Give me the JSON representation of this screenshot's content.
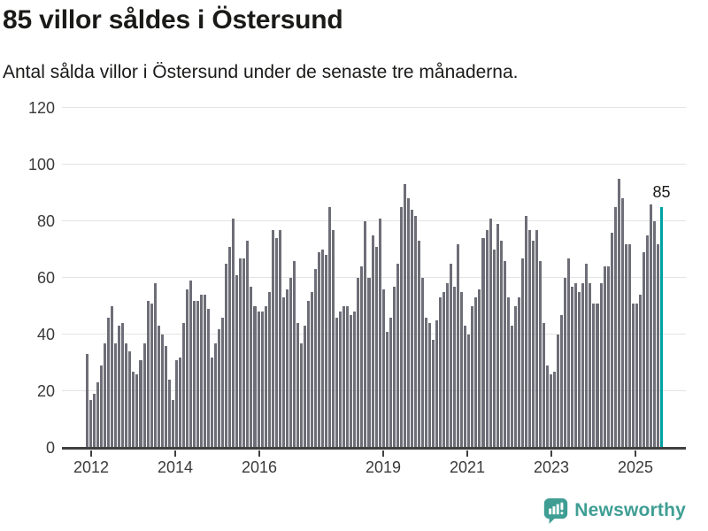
{
  "header": {
    "title": "85 villor såldes i Östersund",
    "subtitle": "Antal sålda villor i Östersund under de senaste tre månaderna."
  },
  "chart_data": {
    "type": "bar",
    "title": "85 villor såldes i Östersund",
    "subtitle": "Antal sålda villor i Östersund under de senaste tre månaderna.",
    "x_start": "2012-01",
    "x_end": "2025-08",
    "frequency": "monthly",
    "x_tick_labels": [
      "2012",
      "2014",
      "2016",
      "2019",
      "2021",
      "2023",
      "2025"
    ],
    "ylim": [
      0,
      120
    ],
    "yticks": [
      0,
      20,
      40,
      60,
      80,
      100,
      120
    ],
    "grid": "horizontal",
    "bar_color": "#6e6e78",
    "values": [
      33,
      17,
      19,
      23,
      29,
      37,
      46,
      50,
      37,
      43,
      44,
      37,
      34,
      27,
      26,
      31,
      37,
      52,
      51,
      58,
      43,
      40,
      36,
      24,
      17,
      31,
      32,
      44,
      56,
      59,
      52,
      52,
      54,
      54,
      49,
      32,
      37,
      42,
      46,
      65,
      71,
      81,
      61,
      67,
      67,
      73,
      57,
      50,
      48,
      48,
      50,
      55,
      77,
      74,
      77,
      53,
      56,
      60,
      66,
      44,
      37,
      43,
      52,
      55,
      63,
      69,
      70,
      68,
      85,
      77,
      46,
      48,
      50,
      50,
      47,
      48,
      60,
      64,
      80,
      60,
      75,
      71,
      81,
      56,
      41,
      46,
      57,
      65,
      85,
      93,
      88,
      84,
      82,
      73,
      60,
      46,
      44,
      38,
      45,
      53,
      55,
      58,
      65,
      57,
      72,
      55,
      43,
      40,
      50,
      53,
      56,
      74,
      77,
      81,
      70,
      79,
      73,
      66,
      53,
      43,
      50,
      53,
      67,
      82,
      77,
      73,
      77,
      66,
      44,
      29,
      26,
      27,
      40,
      47,
      60,
      67,
      57,
      58,
      55,
      58,
      65,
      58,
      51,
      51,
      58,
      64,
      64,
      76,
      85,
      95,
      88,
      72,
      72,
      51,
      51,
      54,
      69,
      75,
      86,
      80,
      72,
      85
    ],
    "highlight": {
      "label": "85",
      "value": 85,
      "color": "#00a1a1",
      "position": "last"
    }
  },
  "footer": {
    "brand": "Newsworthy",
    "brand_color": "#3f9e94"
  }
}
